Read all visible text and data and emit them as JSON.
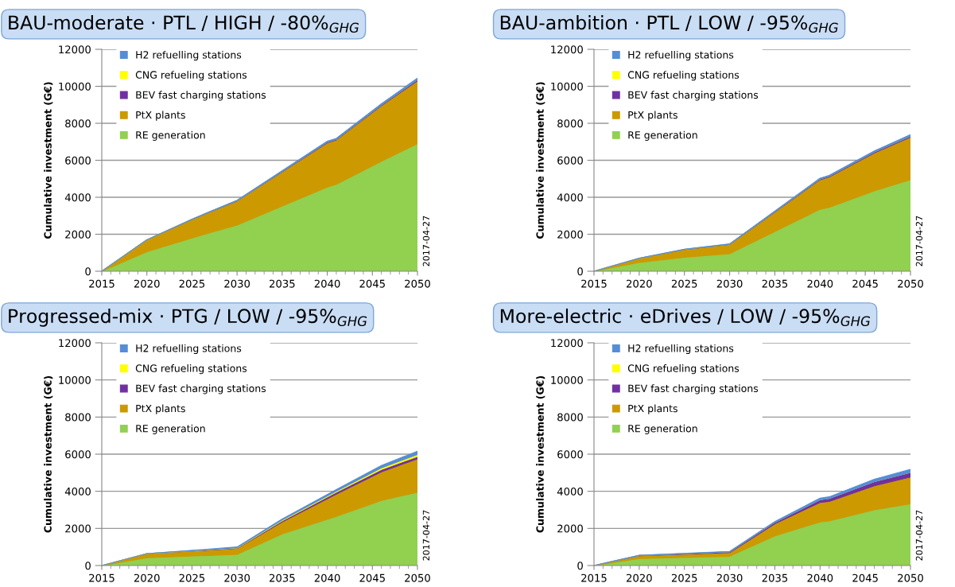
{
  "chart_data": [
    {
      "type": "area",
      "stacked": true,
      "title": "BAU-moderate · PTL / HIGH / -80%$_{GHG}$",
      "ylabel": "Cumulative investment (G€)",
      "x": [
        2015,
        2020,
        2025,
        2030,
        2040,
        2041,
        2046,
        2050
      ],
      "xlim": [
        2015,
        2050
      ],
      "xticks": [
        2015,
        2020,
        2025,
        2030,
        2035,
        2040,
        2045,
        2050
      ],
      "ylim": [
        0,
        12000
      ],
      "yticks": [
        0,
        2000,
        4000,
        6000,
        8000,
        10000,
        12000
      ],
      "grid": "y",
      "legend": "top left",
      "annotations": [
        "2017-04-27"
      ],
      "series": [
        {
          "name": "RE generation",
          "color": "#92d050",
          "values": [
            0,
            1050,
            1800,
            2500,
            4550,
            4700,
            5950,
            6900
          ]
        },
        {
          "name": "PtX plants",
          "color": "#cc9900",
          "values": [
            0,
            650,
            1000,
            1300,
            2400,
            2400,
            3000,
            3400
          ]
        },
        {
          "name": "BEV fast charging stations",
          "color": "#7030a0",
          "values": [
            0,
            0,
            10,
            20,
            40,
            40,
            50,
            60
          ]
        },
        {
          "name": "CNG refueling stations",
          "color": "#ffff00",
          "values": [
            null,
            null,
            null,
            null,
            null,
            null,
            null,
            null
          ]
        },
        {
          "name": "H2 refuelling stations",
          "color": "#558ed5",
          "values": [
            0,
            0,
            10,
            20,
            40,
            40,
            60,
            80
          ]
        }
      ]
    },
    {
      "type": "area",
      "stacked": true,
      "title": "BAU-ambition · PTL / LOW / -95%$_{GHG}$",
      "ylabel": "Cumulative investment (G€)",
      "x": [
        2015,
        2020,
        2025,
        2030,
        2040,
        2041,
        2046,
        2050
      ],
      "xlim": [
        2015,
        2050
      ],
      "xticks": [
        2015,
        2020,
        2025,
        2030,
        2035,
        2040,
        2045,
        2050
      ],
      "ylim": [
        0,
        12000
      ],
      "yticks": [
        0,
        2000,
        4000,
        6000,
        8000,
        10000,
        12000
      ],
      "grid": "y",
      "legend": "top left",
      "annotations": [
        "2017-04-27"
      ],
      "series": [
        {
          "name": "RE generation",
          "color": "#92d050",
          "values": [
            0,
            480,
            750,
            950,
            3350,
            3450,
            4350,
            4950
          ]
        },
        {
          "name": "PtX plants",
          "color": "#cc9900",
          "values": [
            0,
            220,
            420,
            500,
            1600,
            1650,
            2050,
            2300
          ]
        },
        {
          "name": "BEV fast charging stations",
          "color": "#7030a0",
          "values": [
            0,
            0,
            10,
            10,
            40,
            40,
            50,
            60
          ]
        },
        {
          "name": "CNG refueling stations",
          "color": "#ffff00",
          "values": [
            null,
            null,
            null,
            null,
            null,
            null,
            null,
            null
          ]
        },
        {
          "name": "H2 refuelling stations",
          "color": "#558ed5",
          "values": [
            0,
            10,
            10,
            20,
            40,
            40,
            60,
            80
          ]
        }
      ]
    },
    {
      "type": "area",
      "stacked": true,
      "title": "Progressed-mix · PTG / LOW / -95%$_{GHG}$",
      "ylabel": "Cumulative investment (G€)",
      "x": [
        2015,
        2020,
        2030,
        2035,
        2041,
        2046,
        2050
      ],
      "xlim": [
        2015,
        2050
      ],
      "xticks": [
        2015,
        2020,
        2025,
        2030,
        2035,
        2040,
        2045,
        2050
      ],
      "ylim": [
        0,
        12000
      ],
      "yticks": [
        0,
        2000,
        4000,
        6000,
        8000,
        10000,
        12000
      ],
      "grid": "y",
      "legend": "top left",
      "annotations": [
        "2017-04-27"
      ],
      "series": [
        {
          "name": "RE generation",
          "color": "#92d050",
          "values": [
            0,
            420,
            600,
            1700,
            2650,
            3500,
            3950
          ]
        },
        {
          "name": "PtX plants",
          "color": "#cc9900",
          "values": [
            0,
            220,
            320,
            650,
            1200,
            1550,
            1800
          ]
        },
        {
          "name": "BEV fast charging stations",
          "color": "#7030a0",
          "values": [
            0,
            0,
            20,
            60,
            100,
            130,
            130
          ]
        },
        {
          "name": "CNG refueling stations",
          "color": "#ffff00",
          "values": [
            0,
            0,
            20,
            40,
            60,
            80,
            100
          ]
        },
        {
          "name": "H2 refuelling stations",
          "color": "#558ed5",
          "values": [
            0,
            0,
            40,
            60,
            80,
            130,
            180
          ]
        }
      ]
    },
    {
      "type": "area",
      "stacked": true,
      "title": "More-electric · eDrives / LOW / -95%$_{GHG}$",
      "ylabel": "Cumulative investment (G€)",
      "x": [
        2015,
        2020,
        2030,
        2035,
        2040,
        2041,
        2046,
        2050
      ],
      "xlim": [
        2015,
        2050
      ],
      "xticks": [
        2015,
        2020,
        2025,
        2030,
        2035,
        2040,
        2045,
        2050
      ],
      "ylim": [
        0,
        12000
      ],
      "yticks": [
        0,
        2000,
        4000,
        6000,
        8000,
        10000,
        12000
      ],
      "grid": "y",
      "legend": "top left",
      "annotations": [
        "2017-04-27"
      ],
      "series": [
        {
          "name": "RE generation",
          "color": "#92d050",
          "values": [
            0,
            380,
            500,
            1600,
            2350,
            2400,
            3000,
            3320
          ]
        },
        {
          "name": "PtX plants",
          "color": "#cc9900",
          "values": [
            0,
            150,
            200,
            650,
            1050,
            1050,
            1300,
            1450
          ]
        },
        {
          "name": "BEV fast charging stations",
          "color": "#7030a0",
          "values": [
            0,
            10,
            40,
            80,
            150,
            160,
            220,
            250
          ]
        },
        {
          "name": "CNG refueling stations",
          "color": "#ffff00",
          "values": [
            null,
            null,
            null,
            null,
            null,
            null,
            null,
            null
          ]
        },
        {
          "name": "H2 refuelling stations",
          "color": "#558ed5",
          "values": [
            0,
            10,
            20,
            40,
            80,
            90,
            130,
            160
          ]
        }
      ]
    }
  ]
}
